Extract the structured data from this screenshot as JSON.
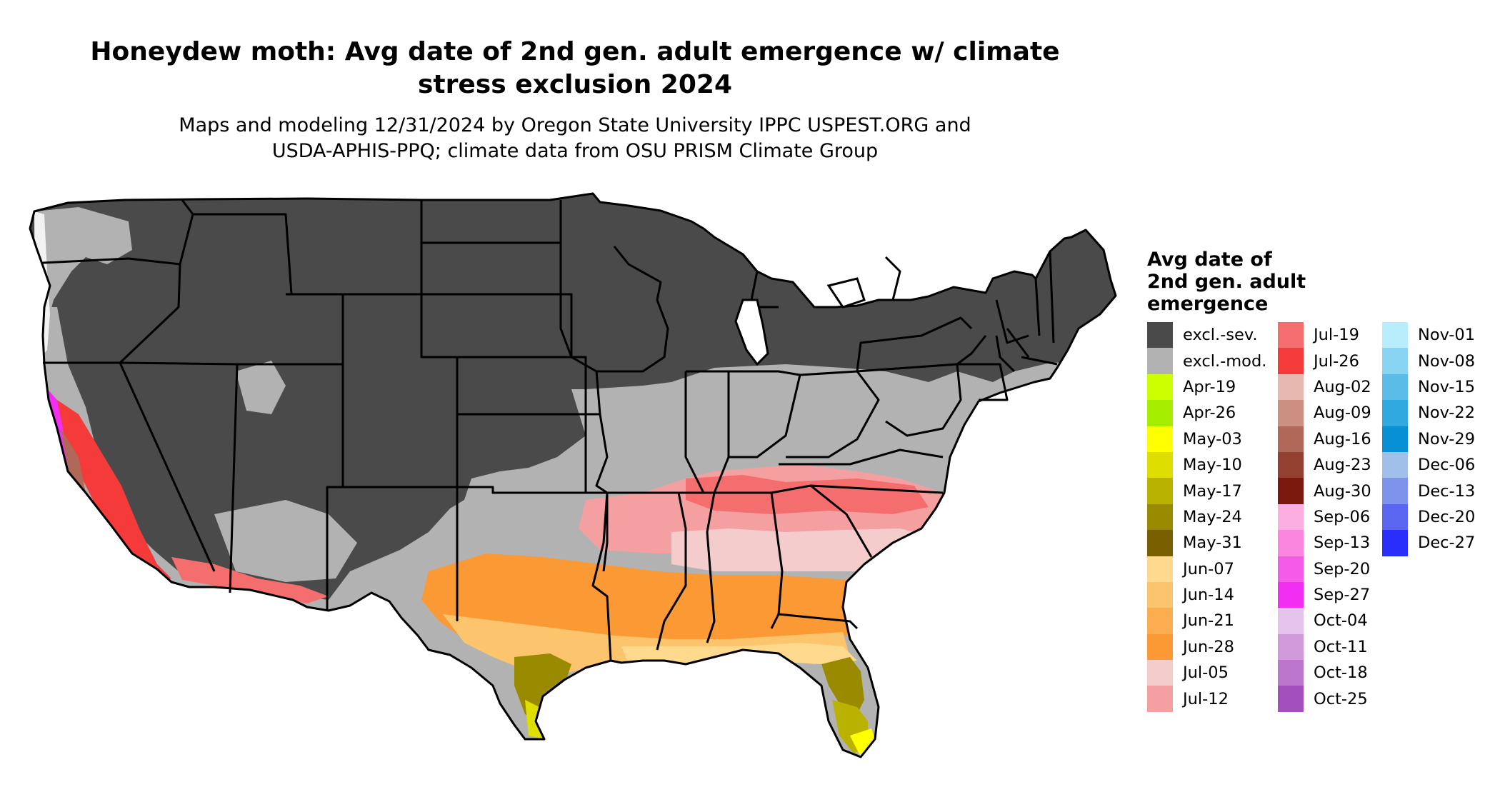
{
  "title": "Honeydew moth: Avg date of 2nd gen. adult emergence w/ climate\nstress exclusion 2024",
  "subtitle": "Maps and modeling 12/31/2024 by Oregon State University IPPC USPEST.ORG and\nUSDA-APHIS-PPQ; climate data from OSU PRISM Climate Group",
  "legend": {
    "title": "Avg date of\n2nd gen. adult\nemergence",
    "columns": [
      [
        {
          "label": "excl.-sev.",
          "color": "#4a4a4a"
        },
        {
          "label": "excl.-mod.",
          "color": "#b2b2b2"
        },
        {
          "label": "Apr-19",
          "color": "#ccff00"
        },
        {
          "label": "Apr-26",
          "color": "#a6ee00"
        },
        {
          "label": "May-03",
          "color": "#ffff00"
        },
        {
          "label": "May-10",
          "color": "#dede00"
        },
        {
          "label": "May-17",
          "color": "#bab200"
        },
        {
          "label": "May-24",
          "color": "#9a8a00"
        },
        {
          "label": "May-31",
          "color": "#7a5f00"
        },
        {
          "label": "Jun-07",
          "color": "#fed98e"
        },
        {
          "label": "Jun-14",
          "color": "#fdc46e"
        },
        {
          "label": "Jun-21",
          "color": "#fcad50"
        },
        {
          "label": "Jun-28",
          "color": "#fb9a35"
        },
        {
          "label": "Jul-05",
          "color": "#f5cccc"
        },
        {
          "label": "Jul-12",
          "color": "#f5a0a0"
        }
      ],
      [
        {
          "label": "Jul-19",
          "color": "#f56e6e"
        },
        {
          "label": "Jul-26",
          "color": "#f53a3a"
        },
        {
          "label": "Aug-02",
          "color": "#e6b8b0"
        },
        {
          "label": "Aug-09",
          "color": "#cc9080"
        },
        {
          "label": "Aug-16",
          "color": "#b06858"
        },
        {
          "label": "Aug-23",
          "color": "#944030"
        },
        {
          "label": "Aug-30",
          "color": "#7a1a0e"
        },
        {
          "label": "Sep-06",
          "color": "#fcaee0"
        },
        {
          "label": "Sep-13",
          "color": "#fa86e0"
        },
        {
          "label": "Sep-20",
          "color": "#f65ae8"
        },
        {
          "label": "Sep-27",
          "color": "#f22ef2"
        },
        {
          "label": "Oct-04",
          "color": "#e4c4ec"
        },
        {
          "label": "Oct-11",
          "color": "#d09ada"
        },
        {
          "label": "Oct-18",
          "color": "#bc76cc"
        },
        {
          "label": "Oct-25",
          "color": "#a450bc"
        }
      ],
      [
        {
          "label": "Nov-01",
          "color": "#b8eefc"
        },
        {
          "label": "Nov-08",
          "color": "#88d4f2"
        },
        {
          "label": "Nov-15",
          "color": "#5cbce8"
        },
        {
          "label": "Nov-22",
          "color": "#30a8e0"
        },
        {
          "label": "Nov-29",
          "color": "#0890d4"
        },
        {
          "label": "Dec-06",
          "color": "#a0c0ea"
        },
        {
          "label": "Dec-13",
          "color": "#7e94ec"
        },
        {
          "label": "Dec-20",
          "color": "#5a66f0"
        },
        {
          "label": "Dec-27",
          "color": "#2a2efa"
        }
      ]
    ]
  }
}
